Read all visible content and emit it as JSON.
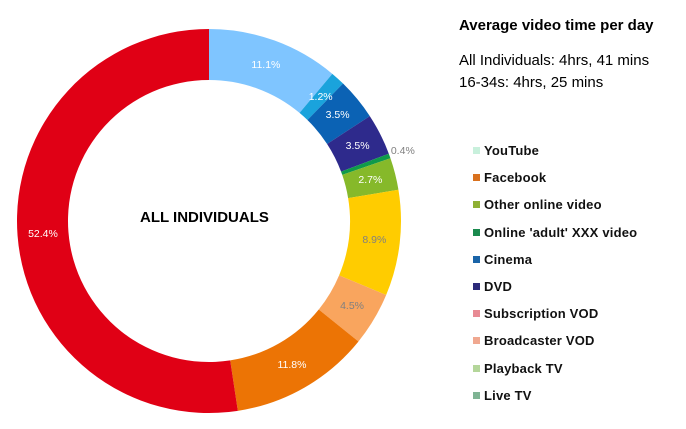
{
  "chart_data": {
    "type": "pie",
    "subtype": "donut",
    "title": "Average video time per day",
    "subtitle_lines": [
      "All Individuals: 4hrs, 41 mins",
      "16-34s: 4hrs, 25 mins"
    ],
    "center_label": "ALL INDIVIDUALS",
    "legend_position": "right",
    "slices": [
      {
        "label": "Playback TV",
        "value": 11.1,
        "display": "11.1%",
        "color": "#7fc5ff",
        "label_color": "#ffffff"
      },
      {
        "label": "YouTube",
        "value": 1.2,
        "display": "1.2%",
        "color": "#1aa3dc",
        "label_color": "#ffffff"
      },
      {
        "label": "Cinema",
        "value": 3.5,
        "display": "3.5%",
        "color": "#0b62b4",
        "label_color": "#ffffff"
      },
      {
        "label": "DVD",
        "value": 3.5,
        "display": "3.5%",
        "color": "#2e2a8c",
        "label_color": "#ffffff"
      },
      {
        "label": "Online 'adult' XXX video",
        "value": 0.4,
        "display": "0.4%",
        "color": "#0f9a4a",
        "label_color": "#808080"
      },
      {
        "label": "Other online video",
        "value": 2.7,
        "display": "2.7%",
        "color": "#86b92a",
        "label_color": "#ffffff"
      },
      {
        "label": "Subscription VOD",
        "value": 8.9,
        "display": "8.9%",
        "color": "#ffcc00",
        "label_color": "#808080"
      },
      {
        "label": "Broadcaster VOD",
        "value": 4.5,
        "display": "4.5%",
        "color": "#f9a55e",
        "label_color": "#808080"
      },
      {
        "label": "Facebook",
        "value": 11.8,
        "display": "11.8%",
        "color": "#ec7405",
        "label_color": "#ffffff"
      },
      {
        "label": "Live TV",
        "value": 52.4,
        "display": "52.4%",
        "color": "#e00015",
        "label_color": "#ffffff"
      }
    ]
  },
  "header": {
    "title": "Average video time per day",
    "line1": "All Individuals: 4hrs, 41 mins",
    "line2": "16-34s: 4hrs, 25 mins"
  },
  "center_label": "ALL INDIVIDUALS",
  "legend": [
    {
      "label": "YouTube",
      "color": "#c8f0dc"
    },
    {
      "label": "Facebook",
      "color": "#d9711e"
    },
    {
      "label": "Other online video",
      "color": "#8fb034"
    },
    {
      "label": "Online 'adult' XXX video",
      "color": "#1a8a4e"
    },
    {
      "label": "Cinema",
      "color": "#1a64a8"
    },
    {
      "label": "DVD",
      "color": "#2c2a7a"
    },
    {
      "label": "Subscription VOD",
      "color": "#e88a94"
    },
    {
      "label": "Broadcaster VOD",
      "color": "#f0a890"
    },
    {
      "label": "Playback TV",
      "color": "#b4d69a"
    },
    {
      "label": "Live TV",
      "color": "#7fb494"
    }
  ]
}
